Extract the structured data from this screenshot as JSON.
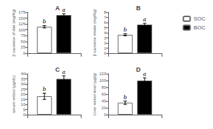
{
  "chart_data": [
    {
      "type": "bar",
      "title": "A",
      "y_label": "β carotene of diet (mg/Kg)",
      "categories": [
        null
      ],
      "series": [
        {
          "name": "SOC",
          "color": "white",
          "values": [
            113
          ],
          "errors": [
            5
          ],
          "annotations": [
            "b"
          ]
        },
        {
          "name": "BOC",
          "color": "black",
          "values": [
            163
          ],
          "errors": [
            6
          ],
          "annotations": [
            "a"
          ]
        }
      ],
      "ylim": [
        0,
        175
      ],
      "yticks": [
        0,
        25,
        50,
        75,
        100,
        125,
        150,
        175
      ],
      "grid": false,
      "tick_labels": "y"
    },
    {
      "type": "bar",
      "title": "B",
      "y_label": "β carotene intake (mg/Kg)",
      "categories": [
        null
      ],
      "series": [
        {
          "name": "SOC",
          "color": "white",
          "values": [
            3.6
          ],
          "errors": [
            0.2
          ],
          "annotations": [
            "b"
          ]
        },
        {
          "name": "BOC",
          "color": "black",
          "values": [
            5.6
          ],
          "errors": [
            0.25
          ],
          "annotations": [
            "a"
          ]
        }
      ],
      "ylim": [
        0,
        8
      ],
      "yticks": [
        0,
        1,
        2,
        3,
        4,
        5,
        6,
        7,
        8
      ],
      "grid": false,
      "tick_labels": "y",
      "legend": "upper right"
    },
    {
      "type": "bar",
      "title": "C",
      "y_label": "serum retinol (µg/dL)",
      "categories": [
        null
      ],
      "series": [
        {
          "name": "SOC",
          "color": "white",
          "values": [
            18
          ],
          "errors": [
            3
          ],
          "annotations": [
            "b"
          ]
        },
        {
          "name": "BOC",
          "color": "black",
          "values": [
            35
          ],
          "errors": [
            3
          ],
          "annotations": [
            "a"
          ]
        }
      ],
      "ylim": [
        0,
        40
      ],
      "yticks": [
        0,
        5,
        10,
        15,
        20,
        25,
        30,
        35,
        40
      ],
      "grid": false,
      "tick_labels": "y"
    },
    {
      "type": "bar",
      "title": "D",
      "y_label": "Liver retinol level (µg/g)",
      "categories": [
        null
      ],
      "series": [
        {
          "name": "SOC",
          "color": "white",
          "values": [
            35
          ],
          "errors": [
            5
          ],
          "annotations": [
            "b"
          ]
        },
        {
          "name": "BOC",
          "color": "black",
          "values": [
            100
          ],
          "errors": [
            8
          ],
          "annotations": [
            "a"
          ]
        }
      ],
      "ylim": [
        0,
        120
      ],
      "yticks": [
        0,
        20,
        40,
        60,
        80,
        100,
        120
      ],
      "grid": false,
      "tick_labels": "y"
    }
  ]
}
